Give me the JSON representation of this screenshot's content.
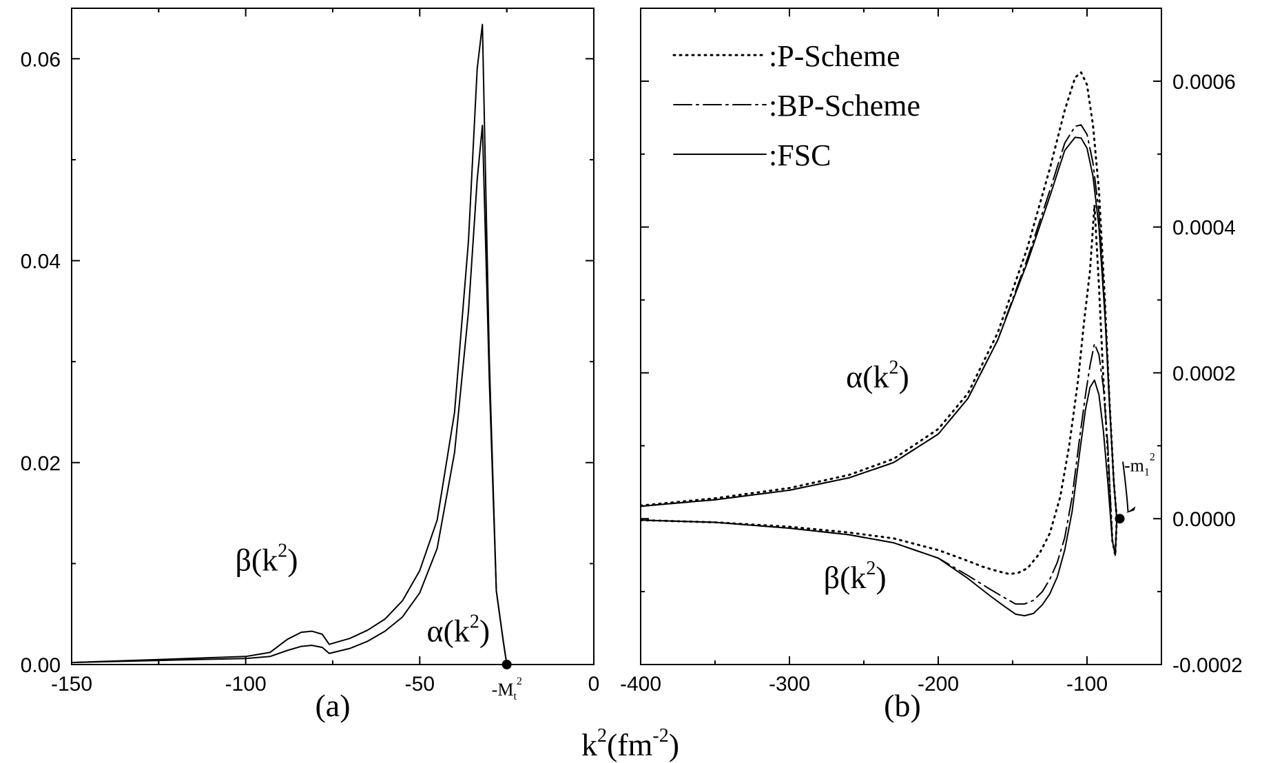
{
  "x_title": {
    "main": "k",
    "sup1": "2",
    "mid": "(fm",
    "sup2": "-2",
    "end": ")"
  },
  "chart_data": [
    {
      "type": "line",
      "panel_label": "(a)",
      "xlim": [
        -150,
        0
      ],
      "ylim": [
        0,
        0.065
      ],
      "x_ticks": [
        -150,
        -100,
        -50,
        0
      ],
      "x_tick_labels": [
        "-150",
        "-100",
        "-50",
        "0"
      ],
      "y_ticks": [
        0.0,
        0.02,
        0.04,
        0.06
      ],
      "y_tick_labels": [
        "0.00",
        "0.02",
        "0.04",
        "0.06"
      ],
      "grid": false,
      "series": [
        {
          "x": [
            -150,
            -125,
            -100,
            -93,
            -88,
            -84,
            -81,
            -78,
            -76,
            -70,
            -65,
            -60,
            -55,
            -50,
            -45,
            -40,
            -36,
            -33.5,
            -32,
            -30,
            -28,
            -26,
            -25
          ],
          "y": [
            0.0002,
            0.0005,
            0.0008,
            0.0012,
            0.0025,
            0.0032,
            0.0033,
            0.003,
            0.002,
            0.0026,
            0.0034,
            0.0045,
            0.0063,
            0.0093,
            0.0143,
            0.025,
            0.042,
            0.059,
            0.0634,
            0.03,
            0.0073,
            0.0023,
            0.0
          ]
        },
        {
          "x": [
            -150,
            -125,
            -100,
            -93,
            -88,
            -84,
            -81,
            -78,
            -76,
            -70,
            -65,
            -60,
            -55,
            -50,
            -45,
            -40,
            -36,
            -33.5,
            -32,
            -30,
            -28,
            -26,
            -25
          ],
          "y": [
            0.0002,
            0.0004,
            0.0006,
            0.0008,
            0.0014,
            0.0018,
            0.0019,
            0.0017,
            0.0011,
            0.0016,
            0.0023,
            0.0033,
            0.0047,
            0.0071,
            0.0115,
            0.021,
            0.035,
            0.048,
            0.0534,
            0.028,
            0.0073,
            0.0023,
            0.0
          ]
        }
      ],
      "annotations": [
        {
          "text": "β(k",
          "sup": "2",
          "close": ")",
          "x": -103,
          "y": 0.0093
        },
        {
          "text": "α(k",
          "sup": "2",
          "close": ")",
          "x": -48,
          "y": 0.0023
        }
      ],
      "marker": {
        "x": -25,
        "y": 0,
        "label": "-M",
        "sub": "t",
        "sup": "2"
      }
    },
    {
      "type": "line",
      "panel_label": "(b)",
      "xlim": [
        -400,
        -50
      ],
      "ylim": [
        -0.0002,
        0.0007
      ],
      "x_ticks": [
        -400,
        -300,
        -200,
        -100
      ],
      "x_tick_labels": [
        "-400",
        "-300",
        "-200",
        "-100"
      ],
      "y_ticks": [
        -0.0002,
        0.0,
        0.0002,
        0.0004,
        0.0006
      ],
      "y_tick_labels": [
        "-0.0002",
        "0.0000",
        "0.0002",
        "0.0004",
        "0.0006"
      ],
      "y_axis_side": "right",
      "grid": false,
      "legend": {
        "position": "top-left",
        "entries": [
          {
            "label": ":P-Scheme",
            "style": "dotted"
          },
          {
            "label": ":BP-Scheme",
            "style": "dash-dot"
          },
          {
            "label": ":FSC",
            "style": "solid"
          }
        ]
      },
      "series": [
        {
          "name": "P-Scheme alpha",
          "style": "dotted",
          "x": [
            -400,
            -350,
            -300,
            -260,
            -230,
            -200,
            -180,
            -160,
            -140,
            -125,
            -115,
            -108,
            -104,
            -100,
            -96,
            -92,
            -88,
            -85,
            -82,
            -80
          ],
          "y": [
            1.8e-05,
            2.8e-05,
            4.2e-05,
            6e-05,
            8.2e-05,
            0.000123,
            0.000172,
            0.000255,
            0.000372,
            0.00048,
            0.00056,
            0.000605,
            0.000612,
            0.000595,
            0.00054,
            0.00045,
            0.0003,
            0.000165,
            5e-05,
            0.0
          ]
        },
        {
          "name": "BP-Scheme alpha",
          "style": "dash-dot",
          "x": [
            -400,
            -350,
            -300,
            -260,
            -230,
            -200,
            -180,
            -160,
            -140,
            -125,
            -115,
            -108,
            -104,
            -100,
            -96,
            -92,
            -88,
            -85,
            -82,
            -80
          ],
          "y": [
            1.7e-05,
            2.6e-05,
            3.9e-05,
            5.6e-05,
            7.7e-05,
            0.000116,
            0.000165,
            0.000245,
            0.000357,
            0.00045,
            0.000515,
            0.000538,
            0.00054,
            0.000527,
            0.000488,
            0.00042,
            0.00029,
            0.000165,
            5e-05,
            0.0
          ]
        },
        {
          "name": "FSC alpha",
          "style": "solid",
          "x": [
            -400,
            -350,
            -300,
            -260,
            -230,
            -200,
            -180,
            -160,
            -140,
            -125,
            -115,
            -108,
            -104,
            -100,
            -96,
            -92,
            -88,
            -85,
            -82,
            -80
          ],
          "y": [
            1.7e-05,
            2.6e-05,
            3.9e-05,
            5.6e-05,
            7.7e-05,
            0.000116,
            0.000165,
            0.000245,
            0.000352,
            0.000442,
            0.000505,
            0.000523,
            0.000522,
            0.000508,
            0.00047,
            0.0004,
            0.00028,
            0.00016,
            5e-05,
            0.0
          ]
        },
        {
          "name": "P-Scheme beta",
          "style": "dotted",
          "x": [
            -400,
            -350,
            -300,
            -260,
            -230,
            -200,
            -180,
            -170,
            -160,
            -152,
            -146,
            -140,
            -132,
            -125,
            -118,
            -112,
            -106,
            -102,
            -98,
            -95,
            -92,
            -89,
            -86,
            -83,
            -81,
            -80
          ],
          "y": [
            -2e-06,
            -5e-06,
            -1.1e-05,
            -1.9e-05,
            -2.7e-05,
            -4.3e-05,
            -5.8e-05,
            -6.6e-05,
            -7.2e-05,
            -7.6e-05,
            -7.4e-05,
            -6.8e-05,
            -4.8e-05,
            -2e-05,
            3e-05,
            0.0001,
            0.00019,
            0.00027,
            0.00034,
            0.00043,
            0.00032,
            0.00019,
            9e-05,
            -3e-05,
            -5e-05,
            0.0
          ]
        },
        {
          "name": "BP-Scheme beta",
          "style": "dash-dot",
          "x": [
            -400,
            -350,
            -300,
            -260,
            -230,
            -200,
            -180,
            -165,
            -155,
            -148,
            -142,
            -136,
            -130,
            -125,
            -120,
            -115,
            -110,
            -105,
            -101,
            -98,
            -95,
            -92,
            -89,
            -86,
            -83,
            -81,
            -80
          ],
          "y": [
            -2e-06,
            -5e-06,
            -1.3e-05,
            -2.2e-05,
            -3.3e-05,
            -5.4e-05,
            -7.8e-05,
            -9.7e-05,
            -0.000109,
            -0.000117,
            -0.000117,
            -0.000112,
            -0.0001,
            -8.3e-05,
            -6e-05,
            -2.6e-05,
            3e-05,
            0.00011,
            0.00017,
            0.00021,
            0.00024,
            0.000225,
            0.00018,
            0.0001,
            -3e-05,
            -5e-05,
            0.0
          ]
        },
        {
          "name": "FSC beta",
          "style": "solid",
          "x": [
            -400,
            -350,
            -300,
            -260,
            -230,
            -200,
            -180,
            -165,
            -155,
            -148,
            -142,
            -136,
            -130,
            -125,
            -120,
            -115,
            -110,
            -105,
            -101,
            -98,
            -95,
            -92,
            -89,
            -86,
            -83,
            -81,
            -80
          ],
          "y": [
            -2e-06,
            -5e-06,
            -1.3e-05,
            -2.2e-05,
            -3.3e-05,
            -5.4e-05,
            -8.2e-05,
            -0.000106,
            -0.000121,
            -0.000131,
            -0.000133,
            -0.00013,
            -0.000118,
            -0.000103,
            -8e-05,
            -4.3e-05,
            1e-05,
            9e-05,
            0.00015,
            0.00018,
            0.00019,
            0.00017,
            0.00012,
            5e-05,
            -3e-05,
            -5e-05,
            0.0
          ]
        }
      ],
      "annotations": [
        {
          "text": "α(k",
          "sup": "2",
          "close": ")",
          "x": -262,
          "y": 0.00018
        },
        {
          "text": "β(k",
          "sup": "2",
          "close": ")",
          "x": -277,
          "y": -9.5e-05
        }
      ],
      "marker": {
        "x": -78,
        "y": 0,
        "label": "-m",
        "sub": "1",
        "sup": "2",
        "label_x": -75,
        "label_y": 6.5e-05
      }
    }
  ]
}
